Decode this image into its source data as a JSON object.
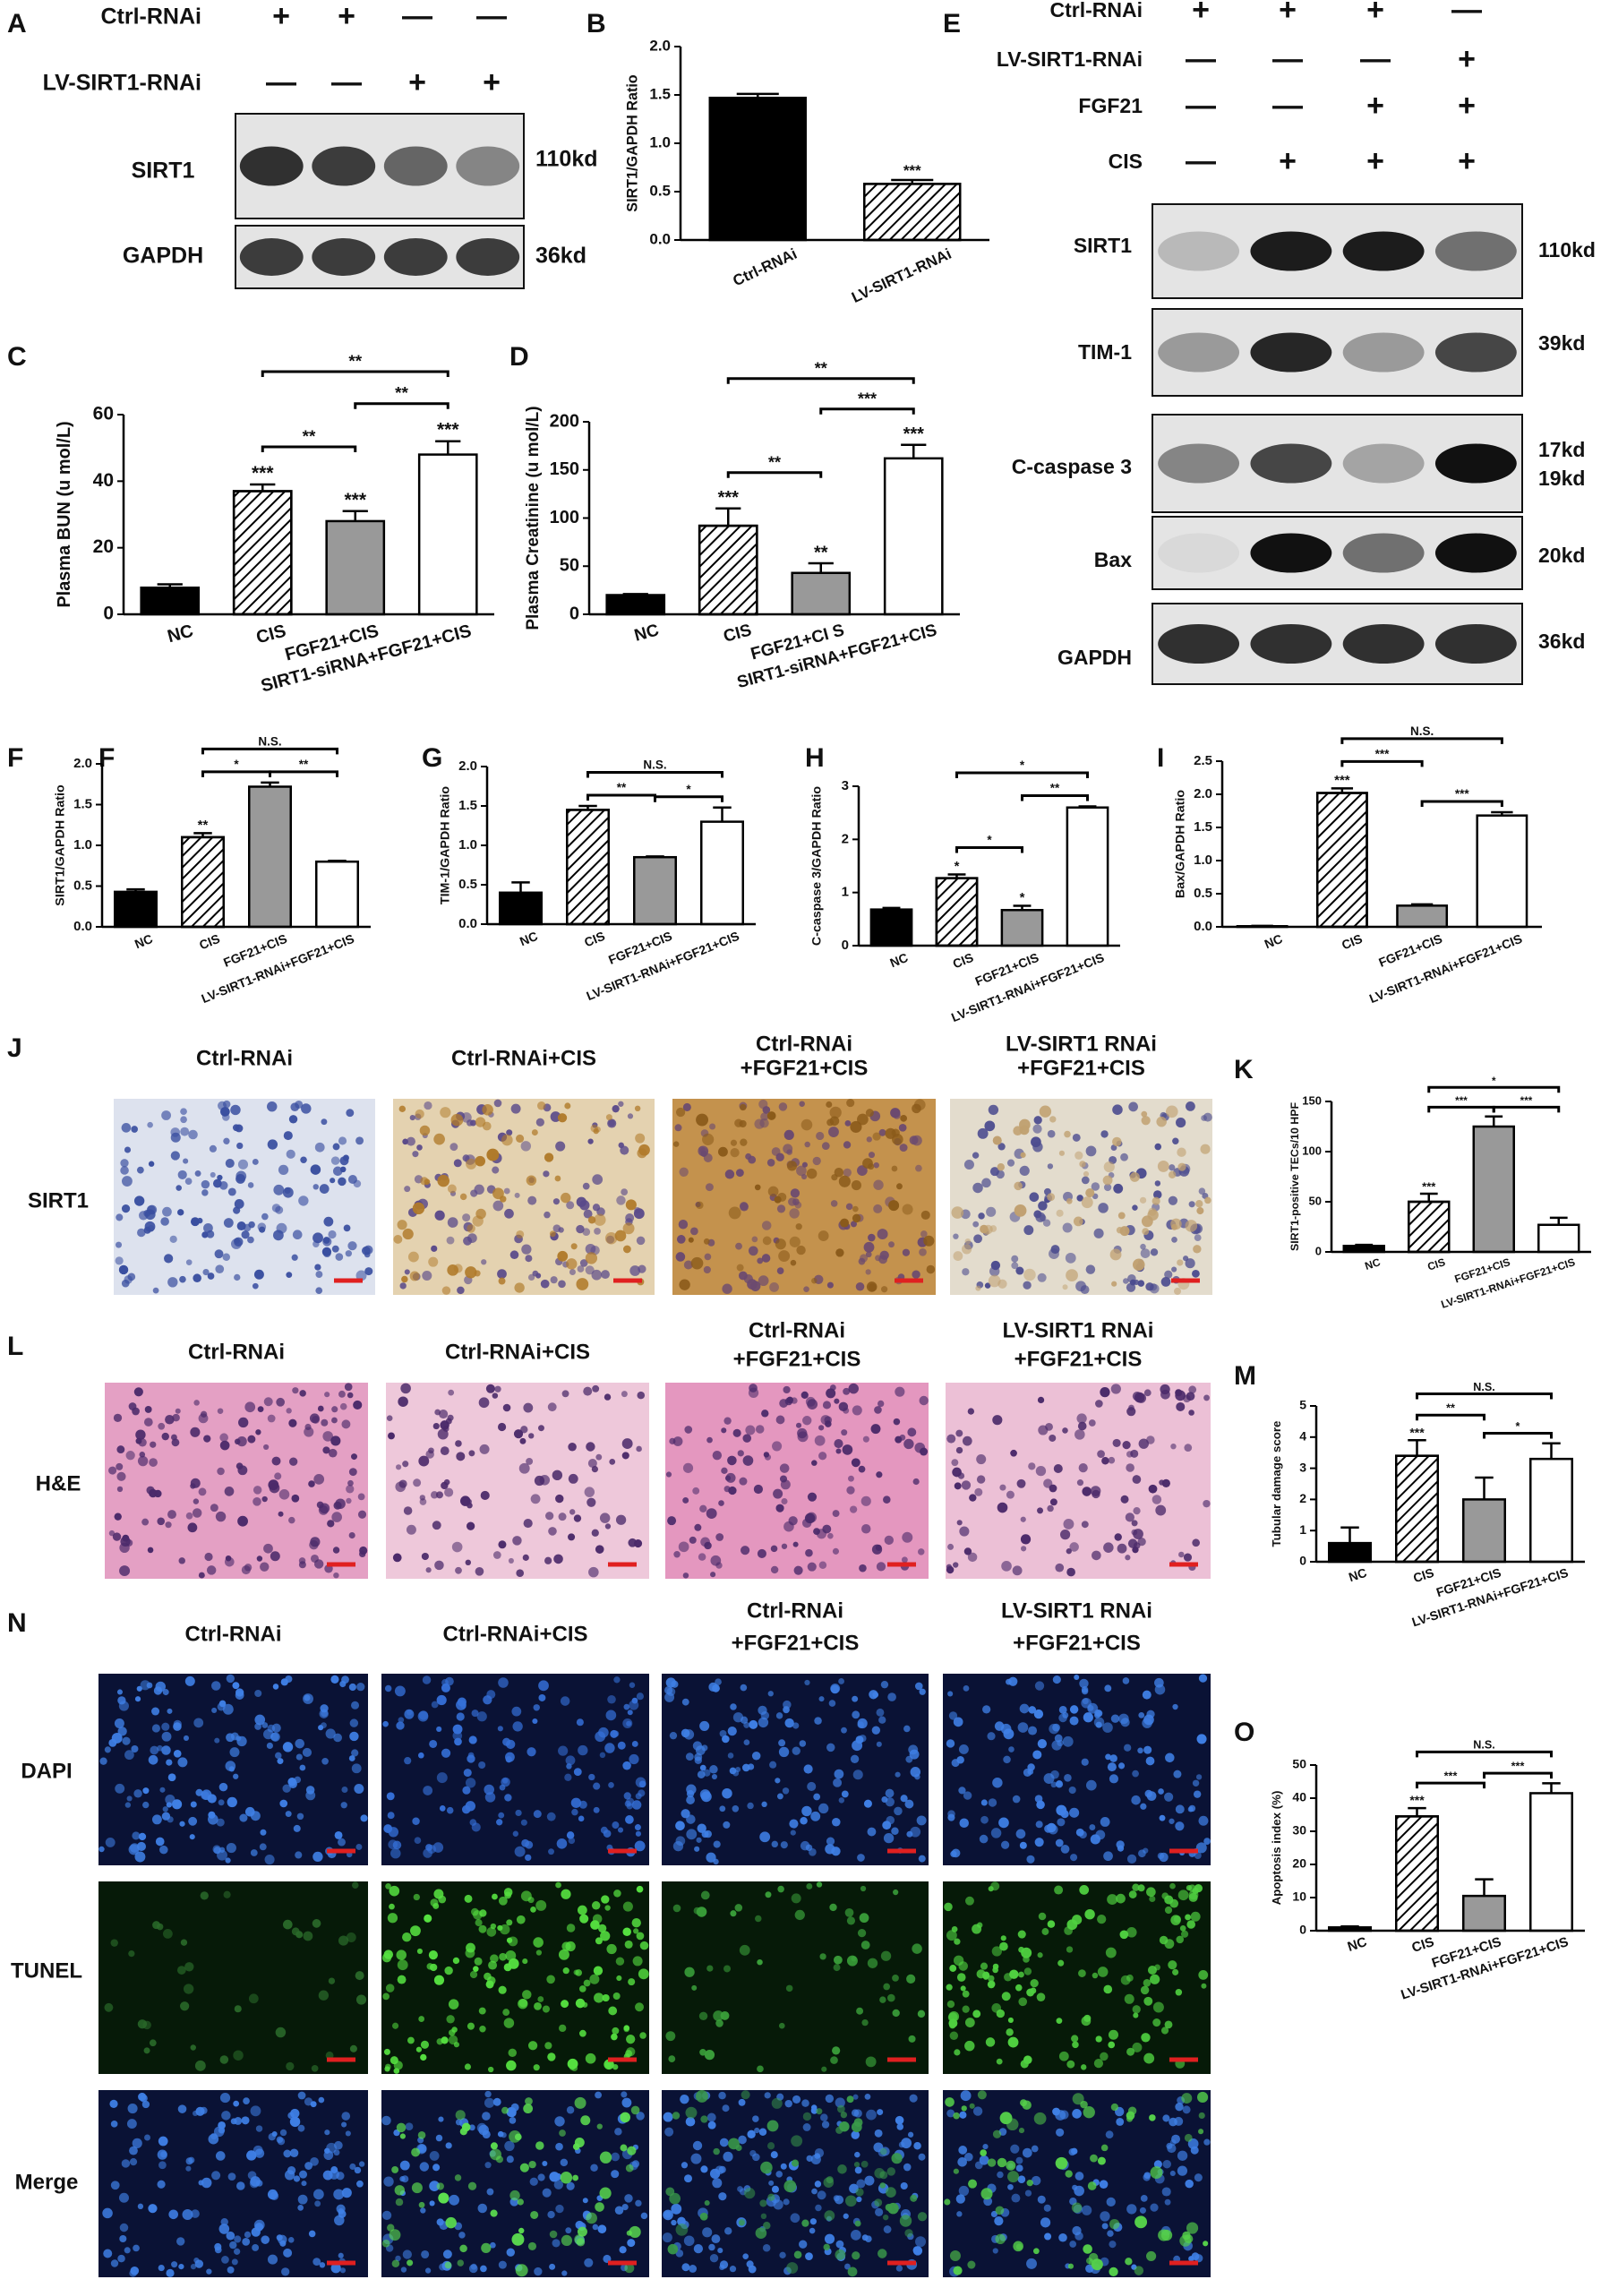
{
  "panel_letters": [
    "A",
    "B",
    "E",
    "C",
    "D",
    "F",
    "F",
    "G",
    "H",
    "I",
    "J",
    "K",
    "L",
    "M",
    "N",
    "O"
  ],
  "blots": {
    "A": {
      "conditions": [
        {
          "label": "Ctrl-RNAi",
          "signs": [
            "+",
            "+",
            "—",
            "—"
          ]
        },
        {
          "label": "LV-SIRT1-RNAi",
          "signs": [
            "—",
            "—",
            "+",
            "+"
          ]
        }
      ],
      "rows": [
        {
          "label": "SIRT1",
          "sizes": [
            "110kd"
          ]
        },
        {
          "label": "GAPDH",
          "sizes": [
            "36kd"
          ]
        }
      ]
    },
    "E": {
      "conditions": [
        {
          "label": "Ctrl-RNAi",
          "signs": [
            "+",
            "+",
            "+",
            "—"
          ]
        },
        {
          "label": "LV-SIRT1-RNAi",
          "signs": [
            "—",
            "—",
            "—",
            "+"
          ]
        },
        {
          "label": "FGF21",
          "signs": [
            "—",
            "—",
            "+",
            "+"
          ]
        },
        {
          "label": "CIS",
          "signs": [
            "—",
            "+",
            "+",
            "+"
          ]
        }
      ],
      "rows": [
        {
          "label": "SIRT1",
          "sizes": [
            "110kd"
          ]
        },
        {
          "label": "TIM-1",
          "sizes": [
            "39kd"
          ]
        },
        {
          "label": "C-caspase 3",
          "sizes": [
            "17kd",
            "19kd"
          ]
        },
        {
          "label": "Bax",
          "sizes": [
            "20kd"
          ]
        },
        {
          "label": "GAPDH",
          "sizes": [
            "36kd"
          ]
        }
      ]
    }
  },
  "micrographs": {
    "J": {
      "column_titles": [
        [
          "Ctrl-RNAi"
        ],
        [
          "Ctrl-RNAi+CIS"
        ],
        [
          "Ctrl-RNAi",
          "+FGF21+CIS"
        ],
        [
          "LV-SIRT1 RNAi",
          "+FGF21+CIS"
        ]
      ],
      "row_labels": [
        "SIRT1"
      ]
    },
    "L": {
      "column_titles": [
        [
          "Ctrl-RNAi"
        ],
        [
          "Ctrl-RNAi+CIS"
        ],
        [
          "Ctrl-RNAi",
          "+FGF21+CIS"
        ],
        [
          "LV-SIRT1 RNAi",
          "+FGF21+CIS"
        ]
      ],
      "row_labels": [
        "H&E"
      ]
    },
    "N": {
      "column_titles": [
        [
          "Ctrl-RNAi"
        ],
        [
          "Ctrl-RNAi+CIS"
        ],
        [
          "Ctrl-RNAi",
          "+FGF21+CIS"
        ],
        [
          "LV-SIRT1 RNAi",
          "+FGF21+CIS"
        ]
      ],
      "row_labels": [
        "DAPI",
        "TUNEL",
        "Merge"
      ]
    }
  },
  "chart_data": [
    {
      "type": "bar",
      "ylabel": "SIRT1/GAPDH Ratio",
      "categories": [
        "Ctrl-RNAi",
        "LV-SIRT1-RNAi"
      ],
      "values": [
        1.47,
        0.58
      ],
      "errors": [
        0.04,
        0.04
      ],
      "colors": [
        "#000000",
        "#ffffff"
      ],
      "hatched": [
        false,
        true
      ],
      "bar_labels": [
        null,
        "***"
      ],
      "ylim": [
        0,
        2
      ],
      "yticks": [
        {
          "value": 0,
          "label": "0.0"
        },
        0.5,
        {
          "value": 1,
          "label": "1.0"
        },
        1.5,
        {
          "value": 2,
          "label": "2.0"
        }
      ]
    },
    {
      "type": "bar",
      "ylabel": "Plasma BUN (u mol/L)",
      "categories": [
        "NC",
        "CIS",
        "FGF21+CIS",
        "SIRT1-siRNA+FGF21+CIS"
      ],
      "values": [
        8,
        37,
        28,
        48
      ],
      "errors": [
        1,
        2,
        3,
        4
      ],
      "colors": [
        "#000000",
        "#ffffff",
        "#999999",
        "#ffffff"
      ],
      "hatched": [
        false,
        true,
        false,
        false
      ],
      "bar_labels": [
        null,
        "***",
        "***",
        "***"
      ],
      "comparisons": [
        {
          "groups": [
            "CIS",
            "FGF21+CIS"
          ],
          "label": "**"
        },
        {
          "groups": [
            "FGF21+CIS",
            "SIRT1-siRNA+FGF21+CIS"
          ],
          "label": "**"
        },
        {
          "groups": [
            "CIS",
            "SIRT1-siRNA+FGF21+CIS"
          ],
          "label": "**"
        }
      ],
      "ylim": [
        0,
        60
      ],
      "yticks": [
        0,
        20,
        40,
        60
      ]
    },
    {
      "type": "bar",
      "ylabel": "Plasma Creatinine (u mol/L)",
      "categories": [
        "NC",
        "CIS",
        "FGF21+CI S",
        "SIRT1-siRNA+FGF21+CIS"
      ],
      "values": [
        20,
        92,
        43,
        162
      ],
      "errors": [
        1,
        18,
        10,
        14
      ],
      "colors": [
        "#000000",
        "#ffffff",
        "#999999",
        "#ffffff"
      ],
      "hatched": [
        false,
        true,
        false,
        false
      ],
      "bar_labels": [
        null,
        "***",
        "**",
        "***"
      ],
      "comparisons": [
        {
          "groups": [
            "CIS",
            "FGF21+CI S"
          ],
          "label": "**"
        },
        {
          "groups": [
            "FGF21+CI S",
            "SIRT1-siRNA+FGF21+CIS"
          ],
          "label": "***"
        },
        {
          "groups": [
            "CIS",
            "SIRT1-siRNA+FGF21+CIS"
          ],
          "label": "**"
        }
      ],
      "ylim": [
        0,
        200
      ],
      "yticks": [
        0,
        50,
        100,
        150,
        200
      ]
    },
    {
      "type": "bar",
      "ylabel": "SIRT1/GAPDH Ratio",
      "categories": [
        "NC",
        "CIS",
        "FGF21+CIS",
        "LV-SIRT1-RNAi+FGF21+CIS"
      ],
      "values": [
        0.43,
        1.1,
        1.72,
        0.8
      ],
      "errors": [
        0.03,
        0.05,
        0.05,
        0.01
      ],
      "colors": [
        "#000000",
        "#ffffff",
        "#999999",
        "#ffffff"
      ],
      "hatched": [
        false,
        true,
        false,
        false
      ],
      "bar_labels": [
        null,
        "**",
        null,
        null
      ],
      "comparisons": [
        {
          "groups": [
            "CIS",
            "FGF21+CIS"
          ],
          "label": "*"
        },
        {
          "groups": [
            "FGF21+CIS",
            "LV-SIRT1-RNAi+FGF21+CIS"
          ],
          "label": "**"
        },
        {
          "groups": [
            "CIS",
            "LV-SIRT1-RNAi+FGF21+CIS"
          ],
          "label": "N.S."
        }
      ],
      "ylim": [
        0,
        2
      ],
      "yticks": [
        {
          "value": 0,
          "label": "0.0"
        },
        0.5,
        {
          "value": 1,
          "label": "1.0"
        },
        1.5,
        {
          "value": 2,
          "label": "2.0"
        }
      ]
    },
    {
      "type": "bar",
      "ylabel": "TIM-1/GAPDH Ratio",
      "categories": [
        "NC",
        "CIS",
        "FGF21+CIS",
        "LV-SIRT1-RNAi+FGF21+CIS"
      ],
      "values": [
        0.4,
        1.45,
        0.85,
        1.3
      ],
      "errors": [
        0.13,
        0.05,
        0.01,
        0.18
      ],
      "colors": [
        "#000000",
        "#ffffff",
        "#999999",
        "#ffffff"
      ],
      "hatched": [
        false,
        true,
        false,
        false
      ],
      "bar_labels": [
        null,
        null,
        null,
        null
      ],
      "comparisons": [
        {
          "groups": [
            "CIS",
            "FGF21+CIS"
          ],
          "label": "**"
        },
        {
          "groups": [
            "FGF21+CIS",
            "LV-SIRT1-RNAi+FGF21+CIS"
          ],
          "label": "*"
        },
        {
          "groups": [
            "CIS",
            "LV-SIRT1-RNAi+FGF21+CIS"
          ],
          "label": "N.S."
        }
      ],
      "ylim": [
        0,
        2
      ],
      "yticks": [
        {
          "value": 0,
          "label": "0.0"
        },
        0.5,
        {
          "value": 1,
          "label": "1.0"
        },
        1.5,
        {
          "value": 2,
          "label": "2.0"
        }
      ]
    },
    {
      "type": "bar",
      "ylabel": "C-caspase 3/GAPDH Ratio",
      "categories": [
        "NC",
        "CIS",
        "FGF21+CIS",
        "LV-SIRT1-RNAi+FGF21+CIS"
      ],
      "values": [
        0.68,
        1.27,
        0.67,
        2.6
      ],
      "errors": [
        0.03,
        0.07,
        0.08,
        0.02
      ],
      "colors": [
        "#000000",
        "#ffffff",
        "#999999",
        "#ffffff"
      ],
      "hatched": [
        false,
        true,
        false,
        false
      ],
      "bar_labels": [
        null,
        "*",
        "*",
        null
      ],
      "comparisons": [
        {
          "groups": [
            "CIS",
            "FGF21+CIS"
          ],
          "label": "*"
        },
        {
          "groups": [
            "FGF21+CIS",
            "LV-SIRT1-RNAi+FGF21+CIS"
          ],
          "label": "**"
        },
        {
          "groups": [
            "CIS",
            "LV-SIRT1-RNAi+FGF21+CIS"
          ],
          "label": "*"
        }
      ],
      "ylim": [
        0,
        3
      ],
      "yticks": [
        0,
        1,
        2,
        3
      ]
    },
    {
      "type": "bar",
      "ylabel": "Bax/GAPDH Ratio",
      "categories": [
        "NC",
        "CIS",
        "FGF21+CIS",
        "LV-SIRT1-RNAi+FGF21+CIS"
      ],
      "values": [
        0.01,
        2.02,
        0.32,
        1.68
      ],
      "errors": [
        0.005,
        0.07,
        0.02,
        0.05
      ],
      "colors": [
        "#000000",
        "#ffffff",
        "#999999",
        "#ffffff"
      ],
      "hatched": [
        false,
        true,
        false,
        false
      ],
      "bar_labels": [
        null,
        "***",
        null,
        null
      ],
      "comparisons": [
        {
          "groups": [
            "CIS",
            "FGF21+CIS"
          ],
          "label": "***"
        },
        {
          "groups": [
            "FGF21+CIS",
            "LV-SIRT1-RNAi+FGF21+CIS"
          ],
          "label": "***"
        },
        {
          "groups": [
            "CIS",
            "LV-SIRT1-RNAi+FGF21+CIS"
          ],
          "label": "N.S."
        }
      ],
      "ylim": [
        0,
        2.5
      ],
      "yticks": [
        {
          "value": 0,
          "label": "0.0"
        },
        0.5,
        {
          "value": 1,
          "label": "1.0"
        },
        1.5,
        {
          "value": 2,
          "label": "2.0"
        },
        2.5
      ]
    },
    {
      "type": "bar",
      "ylabel": "SIRT1-positive TECs/10 HPF",
      "categories": [
        "NC",
        "CIS",
        "FGF21+CIS",
        "LV-SIRT1-RNAi+FGF21+CIS"
      ],
      "values": [
        6,
        50,
        125,
        27
      ],
      "errors": [
        1,
        8,
        10,
        7
      ],
      "colors": [
        "#000000",
        "#ffffff",
        "#999999",
        "#ffffff"
      ],
      "hatched": [
        false,
        true,
        false,
        false
      ],
      "bar_labels": [
        null,
        "***",
        null,
        null
      ],
      "comparisons": [
        {
          "groups": [
            "CIS",
            "FGF21+CIS"
          ],
          "label": "***"
        },
        {
          "groups": [
            "FGF21+CIS",
            "LV-SIRT1-RNAi+FGF21+CIS"
          ],
          "label": "***"
        },
        {
          "groups": [
            "CIS",
            "LV-SIRT1-RNAi+FGF21+CIS"
          ],
          "label": "*"
        }
      ],
      "ylim": [
        0,
        150
      ],
      "yticks": [
        0,
        50,
        100,
        150
      ]
    },
    {
      "type": "bar",
      "ylabel": "Tubular damage score",
      "categories": [
        "NC",
        "CIS",
        "FGF21+CIS",
        "LV-SIRT1-RNAi+FGF21+CIS"
      ],
      "values": [
        0.6,
        3.4,
        2.0,
        3.3
      ],
      "errors": [
        0.5,
        0.5,
        0.7,
        0.5
      ],
      "colors": [
        "#000000",
        "#ffffff",
        "#999999",
        "#ffffff"
      ],
      "hatched": [
        false,
        true,
        false,
        false
      ],
      "bar_labels": [
        null,
        "***",
        null,
        null
      ],
      "comparisons": [
        {
          "groups": [
            "CIS",
            "FGF21+CIS"
          ],
          "label": "**"
        },
        {
          "groups": [
            "FGF21+CIS",
            "LV-SIRT1-RNAi+FGF21+CIS"
          ],
          "label": "*"
        },
        {
          "groups": [
            "CIS",
            "LV-SIRT1-RNAi+FGF21+CIS"
          ],
          "label": "N.S."
        }
      ],
      "ylim": [
        0,
        5
      ],
      "yticks": [
        0,
        1,
        2,
        3,
        4,
        5
      ]
    },
    {
      "type": "bar",
      "ylabel": "Apoptosis index (%)",
      "categories": [
        "NC",
        "CIS",
        "FGF21+CIS",
        "LV-SIRT1-RNAi+FGF21+CIS"
      ],
      "values": [
        1,
        34.5,
        10.5,
        41.5
      ],
      "errors": [
        0.3,
        2.5,
        5,
        3
      ],
      "colors": [
        "#000000",
        "#ffffff",
        "#999999",
        "#ffffff"
      ],
      "hatched": [
        false,
        true,
        false,
        false
      ],
      "bar_labels": [
        null,
        "***",
        null,
        null
      ],
      "comparisons": [
        {
          "groups": [
            "CIS",
            "FGF21+CIS"
          ],
          "label": "***"
        },
        {
          "groups": [
            "FGF21+CIS",
            "LV-SIRT1-RNAi+FGF21+CIS"
          ],
          "label": "***"
        },
        {
          "groups": [
            "CIS",
            "LV-SIRT1-RNAi+FGF21+CIS"
          ],
          "label": "N.S."
        }
      ],
      "ylim": [
        0,
        50
      ],
      "yticks": [
        0,
        10,
        20,
        30,
        40,
        50
      ]
    }
  ]
}
